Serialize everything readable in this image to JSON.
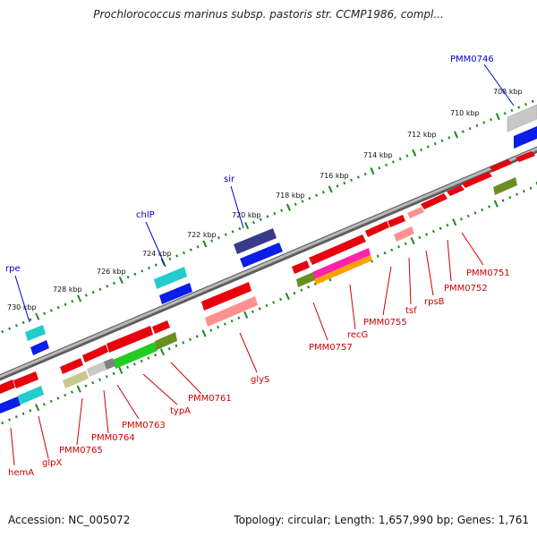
{
  "title": "Prochlorococcus marinus subsp. pastoris str. CCMP1986, compl...",
  "footer": {
    "accession": "Accession: NC_005072",
    "summary": "Topology: circular; Length: 1,657,990 bp; Genes: 1,761"
  },
  "scale": {
    "ticks": [
      "708 kbp",
      "710 kbp",
      "712 kbp",
      "714 kbp",
      "716 kbp",
      "718 kbp",
      "720 kbp",
      "722 kbp",
      "724 kbp",
      "726 kbp",
      "728 kbp",
      "730 kbp"
    ]
  },
  "colors": {
    "backbone": "#8a8a8a",
    "ruler_tick": "#1a8a1a",
    "label_top": "#0000cc",
    "label_bottom": "#cc0000"
  },
  "top_labels": [
    "PMM0746",
    "sir",
    "chlP",
    "rpe"
  ],
  "bottom_labels": [
    "PMM0751",
    "PMM0752",
    "rpsB",
    "tsf",
    "PMM0755",
    "recG",
    "PMM0757",
    "glyS",
    "PMM0761",
    "typA",
    "PMM0763",
    "PMM0764",
    "PMM0765",
    "glpX",
    "hemA"
  ],
  "features": [
    {
      "kind": "gene",
      "strand": "+",
      "color": "#e8000c"
    },
    {
      "kind": "CDS",
      "strand": "+",
      "color": "#ff9090"
    },
    {
      "kind": "rRNA/misc",
      "color": "#2233dd"
    },
    {
      "kind": "tRNA",
      "color": "#22cccc"
    }
  ]
}
